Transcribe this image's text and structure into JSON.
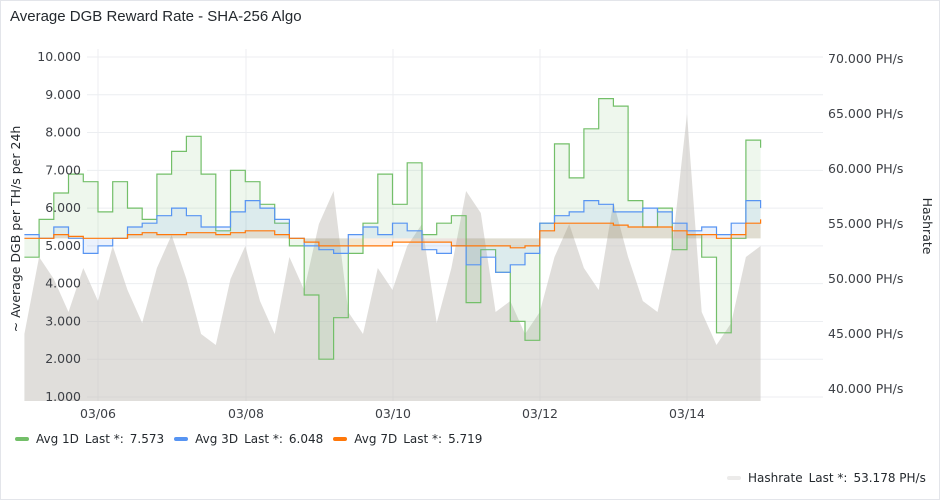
{
  "panel": {
    "title": "Average DGB Reward Rate - SHA-256 Algo"
  },
  "chart_data": {
    "type": "line",
    "title": "Average DGB Reward Rate - SHA-256 Algo",
    "ylabel_left": "~ Average DGB per TH/s per 24h",
    "ylabel_right": "Hashrate",
    "left_ticks": [
      "1.000",
      "2.000",
      "3.000",
      "4.000",
      "5.000",
      "6.000",
      "7.000",
      "8.000",
      "9.000",
      "10.000"
    ],
    "right_ticks": [
      "40.000 PH/s",
      "45.000 PH/s",
      "50.000 PH/s",
      "55.000 PH/s",
      "60.000 PH/s",
      "65.000 PH/s",
      "70.000 PH/s"
    ],
    "x_ticks": [
      "03/06",
      "03/08",
      "03/10",
      "03/12",
      "03/14"
    ],
    "ylim_left": [
      1,
      10
    ],
    "ylim_right": [
      40,
      70
    ],
    "grid": true,
    "legend_placement": "bottom",
    "colors": {
      "avg1d": "#73bf69",
      "avg3d": "#5794f2",
      "avg7d": "#ff780a",
      "hashrate": "#c7c3bd"
    },
    "series": [
      {
        "name": "Avg 1D",
        "color": "#73bf69",
        "last_label": "Last *:",
        "last_value": "7.573",
        "x": [
          5.0,
          5.2,
          5.4,
          5.6,
          5.8,
          6.0,
          6.2,
          6.4,
          6.6,
          6.8,
          7.0,
          7.2,
          7.4,
          7.6,
          7.8,
          8.0,
          8.2,
          8.4,
          8.6,
          8.8,
          9.0,
          9.2,
          9.4,
          9.6,
          9.8,
          10.0,
          10.2,
          10.4,
          10.6,
          10.8,
          11.0,
          11.2,
          11.4,
          11.6,
          11.8,
          12.0,
          12.2,
          12.4,
          12.6,
          12.8,
          13.0,
          13.2,
          13.4,
          13.6,
          13.8,
          14.0,
          14.2,
          14.4,
          14.6,
          14.8,
          15.0
        ],
        "values": [
          4.7,
          5.7,
          6.4,
          6.9,
          6.7,
          5.9,
          6.7,
          6.0,
          5.7,
          6.9,
          7.5,
          7.9,
          6.9,
          5.4,
          7.0,
          6.7,
          6.1,
          5.6,
          5.0,
          3.7,
          2.0,
          3.1,
          4.8,
          5.6,
          6.9,
          6.1,
          7.2,
          5.3,
          5.6,
          5.8,
          3.5,
          4.9,
          4.3,
          3.0,
          2.5,
          5.6,
          7.7,
          6.8,
          8.1,
          8.9,
          8.7,
          6.2,
          5.5,
          6.0,
          4.9,
          5.3,
          4.7,
          2.7,
          5.2,
          7.8,
          7.6
        ]
      },
      {
        "name": "Avg 3D",
        "color": "#5794f2",
        "last_label": "Last *:",
        "last_value": "6.048",
        "x": [
          5.0,
          5.2,
          5.4,
          5.6,
          5.8,
          6.0,
          6.2,
          6.4,
          6.6,
          6.8,
          7.0,
          7.2,
          7.4,
          7.6,
          7.8,
          8.0,
          8.2,
          8.4,
          8.6,
          8.8,
          9.0,
          9.2,
          9.4,
          9.6,
          9.8,
          10.0,
          10.2,
          10.4,
          10.6,
          10.8,
          11.0,
          11.2,
          11.4,
          11.6,
          11.8,
          12.0,
          12.2,
          12.4,
          12.6,
          12.8,
          13.0,
          13.2,
          13.4,
          13.6,
          13.8,
          14.0,
          14.2,
          14.4,
          14.6,
          14.8,
          15.0
        ],
        "values": [
          5.3,
          5.2,
          5.5,
          5.2,
          4.8,
          5.0,
          5.2,
          5.5,
          5.6,
          5.8,
          6.0,
          5.8,
          5.5,
          5.5,
          5.9,
          6.2,
          6.0,
          5.7,
          5.2,
          5.0,
          4.9,
          4.8,
          5.3,
          5.5,
          5.3,
          5.6,
          5.4,
          4.9,
          4.8,
          5.0,
          4.5,
          4.7,
          4.3,
          4.5,
          4.8,
          5.6,
          5.8,
          5.9,
          6.2,
          6.1,
          5.9,
          5.9,
          6.0,
          5.9,
          5.6,
          5.4,
          5.5,
          5.3,
          5.6,
          6.2,
          6.0
        ]
      },
      {
        "name": "Avg 7D",
        "color": "#ff780a",
        "last_label": "Last *:",
        "last_value": "5.719",
        "x": [
          5.0,
          5.2,
          5.4,
          5.6,
          5.8,
          6.0,
          6.2,
          6.4,
          6.6,
          6.8,
          7.0,
          7.2,
          7.4,
          7.6,
          7.8,
          8.0,
          8.2,
          8.4,
          8.6,
          8.8,
          9.0,
          9.2,
          9.4,
          9.6,
          9.8,
          10.0,
          10.2,
          10.4,
          10.6,
          10.8,
          11.0,
          11.2,
          11.4,
          11.6,
          11.8,
          12.0,
          12.2,
          12.4,
          12.6,
          12.8,
          13.0,
          13.2,
          13.4,
          13.6,
          13.8,
          14.0,
          14.2,
          14.4,
          14.6,
          14.8,
          15.0
        ],
        "values": [
          5.2,
          5.2,
          5.3,
          5.25,
          5.2,
          5.2,
          5.2,
          5.3,
          5.35,
          5.3,
          5.3,
          5.35,
          5.35,
          5.3,
          5.35,
          5.4,
          5.4,
          5.3,
          5.2,
          5.1,
          5.0,
          5.0,
          5.0,
          5.0,
          5.0,
          5.1,
          5.1,
          5.1,
          5.1,
          5.0,
          5.0,
          5.0,
          5.0,
          4.95,
          5.0,
          5.4,
          5.6,
          5.6,
          5.6,
          5.6,
          5.55,
          5.5,
          5.5,
          5.5,
          5.4,
          5.3,
          5.3,
          5.2,
          5.3,
          5.6,
          5.7
        ]
      },
      {
        "name": "Hashrate",
        "color": "#c7c3bd",
        "last_label": "Last *:",
        "last_value": "53.178 PH/s",
        "x": [
          5.0,
          5.2,
          5.4,
          5.6,
          5.8,
          6.0,
          6.2,
          6.4,
          6.6,
          6.8,
          7.0,
          7.2,
          7.4,
          7.6,
          7.8,
          8.0,
          8.2,
          8.4,
          8.6,
          8.8,
          9.0,
          9.2,
          9.4,
          9.6,
          9.8,
          10.0,
          10.2,
          10.4,
          10.6,
          10.8,
          11.0,
          11.2,
          11.4,
          11.6,
          11.8,
          12.0,
          12.2,
          12.4,
          12.6,
          12.8,
          13.0,
          13.2,
          13.4,
          13.6,
          13.8,
          14.0,
          14.2,
          14.4,
          14.6,
          14.8,
          15.0
        ],
        "values": [
          45,
          52,
          50,
          47,
          51,
          48,
          53,
          49,
          46,
          51,
          54,
          50,
          45,
          44,
          50,
          53,
          48,
          45,
          52,
          49,
          55,
          58,
          47,
          45,
          51,
          49,
          53,
          55,
          46,
          51,
          58,
          56,
          47,
          48,
          45,
          47,
          52,
          55,
          51,
          49,
          57,
          52,
          48,
          47,
          53,
          65,
          47,
          44,
          46,
          52,
          53
        ]
      }
    ]
  }
}
